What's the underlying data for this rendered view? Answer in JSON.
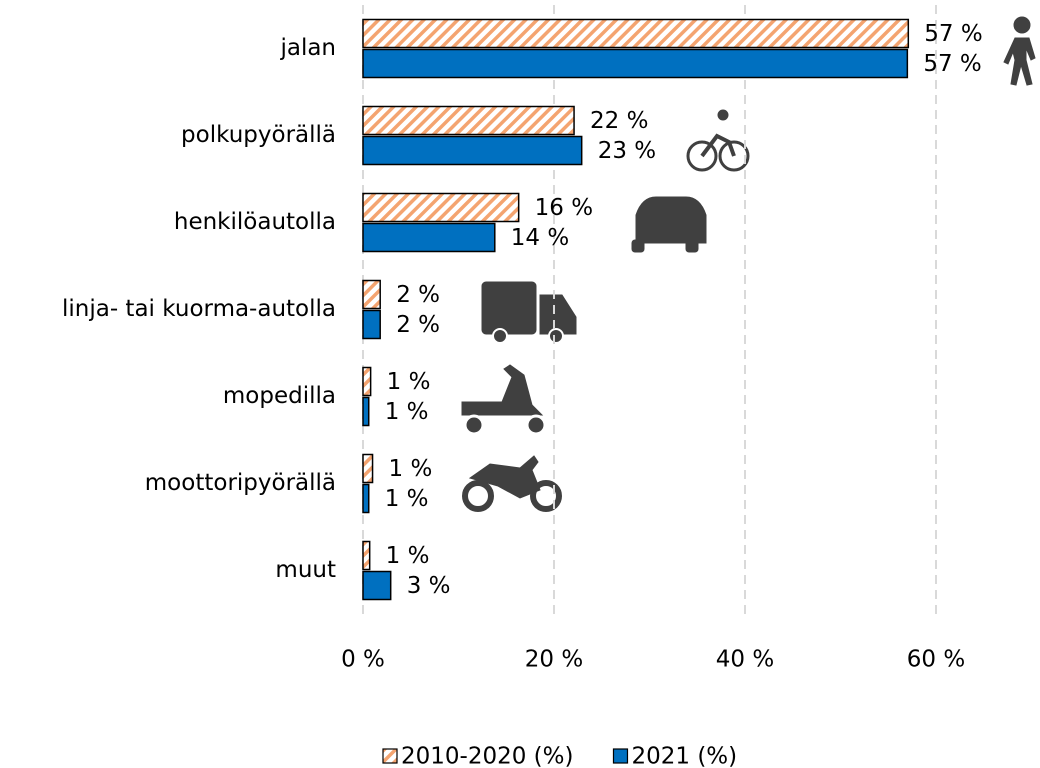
{
  "chart_data": {
    "type": "bar",
    "orientation": "horizontal",
    "categories": [
      "jalan",
      "polkupyörällä",
      "henkilöautolla",
      "linja- tai kuorma-autolla",
      "mopedilla",
      "moottoripyörällä",
      "muut"
    ],
    "series": [
      {
        "name": "2010-2020 (%)",
        "color": "#f4a470",
        "pattern": "hatch",
        "values": [
          57.1,
          22.1,
          16.3,
          1.8,
          0.8,
          1.0,
          0.7
        ],
        "value_labels": [
          "57 %",
          "22 %",
          "16 %",
          "2 %",
          "1 %",
          "1 %",
          "1 %"
        ]
      },
      {
        "name": "2021 (%)",
        "color": "#0070c0",
        "values": [
          57.0,
          22.9,
          13.8,
          1.8,
          0.6,
          0.6,
          2.9
        ],
        "value_labels": [
          "57 %",
          "23 %",
          "14 %",
          "2 %",
          "1 %",
          "1 %",
          "3 %"
        ]
      }
    ],
    "xlim": [
      0,
      70
    ],
    "xticks": [
      {
        "value": 0,
        "label": "0 %"
      },
      {
        "value": 20,
        "label": "20 %"
      },
      {
        "value": 40,
        "label": "40 %"
      },
      {
        "value": 60,
        "label": "60 %"
      }
    ],
    "grid": true,
    "legend": "bottom"
  }
}
